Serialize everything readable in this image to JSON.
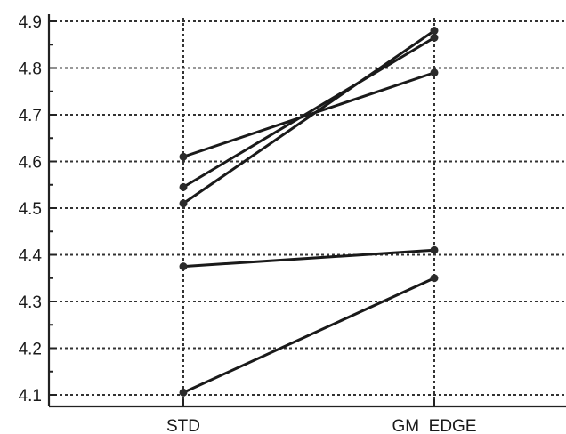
{
  "chart_data": {
    "type": "line",
    "title": "",
    "xlabel": "",
    "ylabel": "",
    "categories": [
      "STD",
      "GM  EDGE"
    ],
    "ylim": [
      4.08,
      4.92
    ],
    "yticks": [
      4.1,
      4.2,
      4.3,
      4.4,
      4.5,
      4.6,
      4.7,
      4.8,
      4.9
    ],
    "ytick_labels": [
      "4.1",
      "4.2",
      "4.3",
      "4.4",
      "4.5",
      "4.6",
      "4.7",
      "4.8",
      "4.9"
    ],
    "grid": true,
    "series": [
      {
        "values": [
          4.61,
          4.79
        ]
      },
      {
        "values": [
          4.545,
          4.865
        ]
      },
      {
        "values": [
          4.51,
          4.88
        ]
      },
      {
        "values": [
          4.375,
          4.41
        ]
      },
      {
        "values": [
          4.105,
          4.35
        ]
      }
    ]
  }
}
